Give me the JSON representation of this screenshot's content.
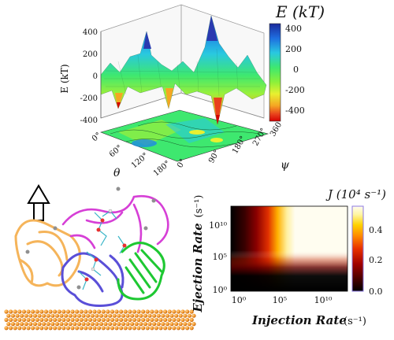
{
  "surface_plot": {
    "z_axis_label": "E (kT)",
    "z_ticks": [
      "400",
      "200",
      "0",
      "-200",
      "-400"
    ],
    "theta_label": "θ",
    "theta_ticks": [
      "0°",
      "60°",
      "120°",
      "180°"
    ],
    "psi_label": "ψ",
    "psi_ticks": [
      "0°",
      "90°",
      "180°",
      "270°",
      "360°"
    ],
    "colorbar_title": "E (kT)",
    "colorbar_ticks": [
      "400",
      "200",
      "0",
      "-200",
      "-400"
    ],
    "colorbar_colors": [
      "#1b2a9c",
      "#1e88e5",
      "#29c8e0",
      "#3ee86f",
      "#8cf03a",
      "#e8f030",
      "#f5a623",
      "#e8401c",
      "#d40000"
    ]
  },
  "heatmap": {
    "title": "J (10⁴ s⁻¹)",
    "xlabel": "Injection Rate",
    "xlabel_unit": "(s⁻¹)",
    "ylabel": "Ejection Rate",
    "ylabel_unit": "(s⁻¹)",
    "x_ticks": [
      "10⁰",
      "10⁵",
      "10¹⁰"
    ],
    "y_ticks": [
      "10⁰",
      "10⁵",
      "10¹⁰"
    ],
    "colorbar_ticks": [
      "0.0",
      "0.2",
      "0.4"
    ],
    "colorbar_colors": [
      "#000000",
      "#4a0000",
      "#a00000",
      "#e83000",
      "#ff8a00",
      "#ffd200",
      "#fff5a0",
      "#fffdf0"
    ]
  },
  "protein_illustration": {
    "arrow_direction": "up",
    "surface_color": "#f2962a",
    "chain_colors": [
      "#f5b45a",
      "#d63fd6",
      "#5a4fd8",
      "#1ec832",
      "#39b5c8"
    ]
  },
  "chart_data": [
    {
      "type": "surface",
      "zlabel": "E (kT)",
      "x_axis": "θ",
      "y_axis": "ψ",
      "x_range_deg": [
        0,
        180
      ],
      "y_range_deg": [
        0,
        360
      ],
      "zlim": [
        -400,
        400
      ]
    },
    {
      "type": "heatmap",
      "title": "J (10⁴ s⁻¹)",
      "xlabel": "Injection Rate (s⁻¹)",
      "ylabel": "Ejection Rate (s⁻¹)",
      "x_scale": "log",
      "y_scale": "log",
      "color_range": [
        0.0,
        0.5
      ]
    }
  ]
}
